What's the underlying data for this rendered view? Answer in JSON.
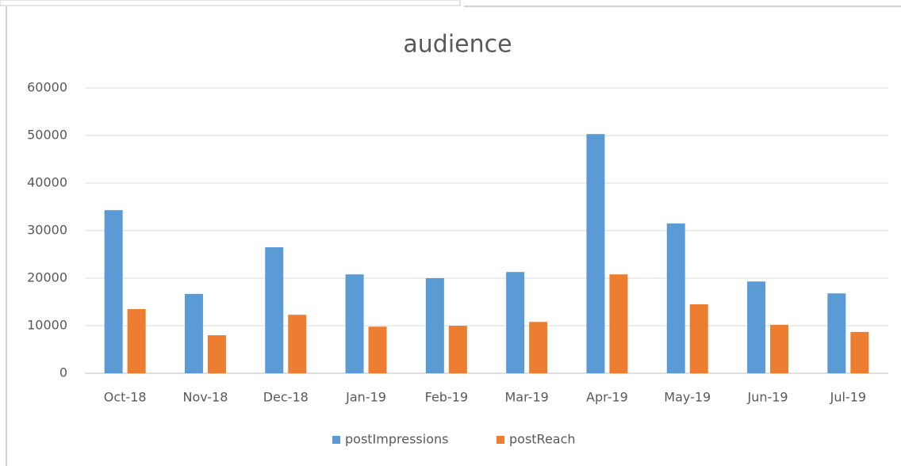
{
  "chart_data": {
    "type": "bar",
    "title": "audience",
    "categories": [
      "Oct-18",
      "Nov-18",
      "Dec-18",
      "Jan-19",
      "Feb-19",
      "Mar-19",
      "Apr-19",
      "May-19",
      "Jun-19",
      "Jul-19"
    ],
    "series": [
      {
        "name": "postImpressions",
        "color": "#5b9bd5",
        "values": [
          34300,
          16700,
          26500,
          20800,
          20000,
          21300,
          50300,
          31500,
          19300,
          16800
        ]
      },
      {
        "name": "postReach",
        "color": "#ed7d31",
        "values": [
          13500,
          8000,
          12300,
          9800,
          10000,
          10800,
          20800,
          14500,
          10200,
          8700
        ]
      }
    ],
    "ylim": [
      0,
      60000
    ],
    "yticks": [
      0,
      10000,
      20000,
      30000,
      40000,
      50000,
      60000
    ],
    "grid": true,
    "legend": "bottom"
  }
}
